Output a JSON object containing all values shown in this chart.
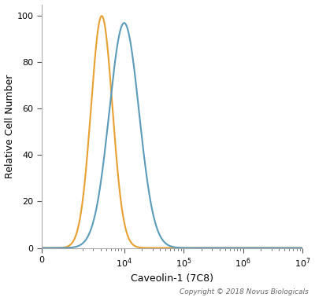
{
  "title": "",
  "xlabel": "Caveolin-1 (7C8)",
  "ylabel": "Relative Cell Number",
  "copyright": "Copyright © 2018 Novus Biologicals",
  "ylim": [
    0,
    105
  ],
  "yticks": [
    0,
    20,
    40,
    60,
    80,
    100
  ],
  "background_color": "#ffffff",
  "plot_bg_color": "#ffffff",
  "orange_color": "#e8a030",
  "blue_color": "#5b9bba",
  "orange_peak_x": 4200,
  "orange_peak_y": 100,
  "orange_sigma": 0.18,
  "blue_peak_x": 10000,
  "blue_peak_y": 97,
  "blue_sigma": 0.25,
  "linthresh": 1000,
  "linscale": 0.35,
  "x_min": 0,
  "x_max": 10000000.0,
  "xtick_positions": [
    0,
    10000,
    100000,
    1000000,
    10000000
  ],
  "xtick_labels": [
    "0",
    "10$^4$",
    "10$^5$",
    "10$^6$",
    "10$^7$"
  ],
  "xlabel_fontsize": 9,
  "ylabel_fontsize": 9,
  "tick_fontsize": 8,
  "copyright_fontsize": 6.5,
  "linewidth": 1.5
}
